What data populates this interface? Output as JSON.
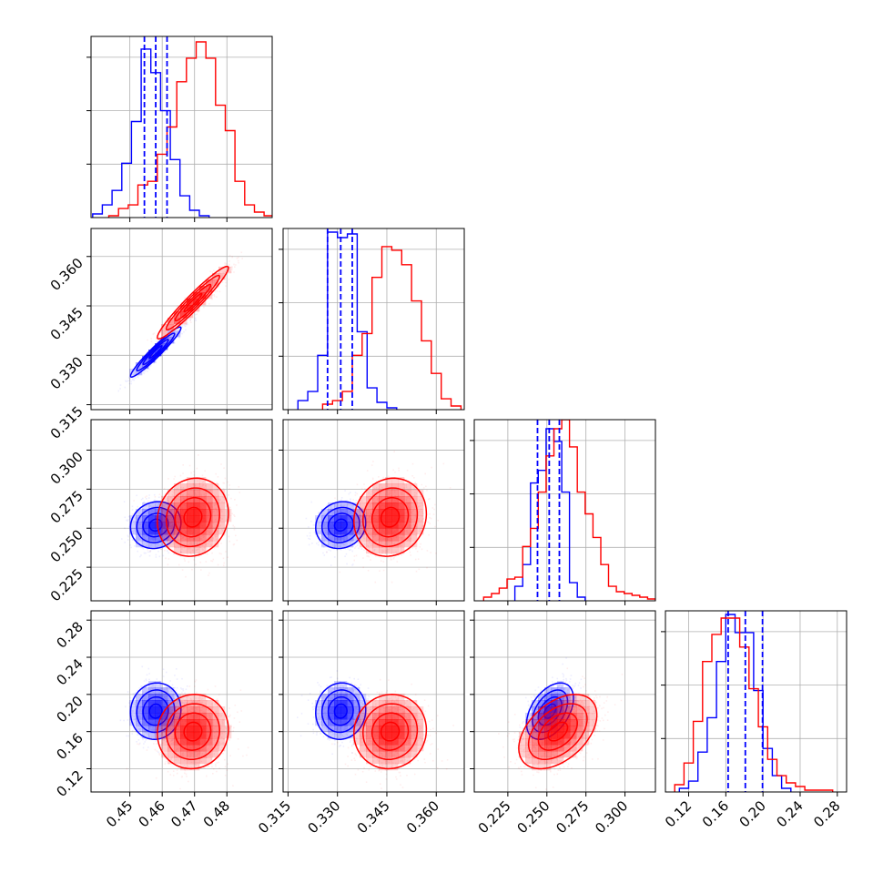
{
  "chart_data": {
    "type": "corner",
    "title": "",
    "parameters": [
      {
        "range": [
          0.438,
          0.494
        ],
        "ticks": [
          0.45,
          0.46,
          0.47,
          0.48
        ],
        "tick_labels": [
          "0.45",
          "0.46",
          "0.47",
          "0.48"
        ]
      },
      {
        "range": [
          0.3135,
          0.3685
        ],
        "ticks": [
          0.315,
          0.33,
          0.345,
          0.36
        ],
        "tick_labels": [
          "0.315",
          "0.330",
          "0.345",
          "0.360"
        ]
      },
      {
        "range": [
          0.2035,
          0.3195
        ],
        "ticks": [
          0.225,
          0.25,
          0.275,
          0.3
        ],
        "tick_labels": [
          "0.225",
          "0.250",
          "0.275",
          "0.300"
        ]
      },
      {
        "range": [
          0.095,
          0.29
        ],
        "ticks": [
          0.12,
          0.16,
          0.2,
          0.24,
          0.28
        ],
        "tick_labels": [
          "0.12",
          "0.16",
          "0.20",
          "0.24",
          "0.28"
        ]
      }
    ],
    "series": [
      {
        "color": "#0000ff",
        "means": [
          0.458,
          0.331,
          0.252,
          0.182
        ],
        "sigmas": [
          0.0039,
          0.0038,
          0.0075,
          0.0152
        ],
        "correlations": {
          "1-0": 0.96,
          "2-0": 0.1,
          "2-1": 0.1,
          "3-0": 0.05,
          "3-1": 0.05,
          "3-2": 0.45
        },
        "quantiles": [
          [
            0.4545,
            0.458,
            0.4615
          ],
          [
            0.327,
            0.331,
            0.3345
          ],
          [
            0.244,
            0.2515,
            0.258
          ],
          [
            0.1625,
            0.181,
            0.1995
          ]
        ],
        "histograms": [
          {
            "bin_edges": [
              0.4385,
              0.4415,
              0.4445,
              0.4475,
              0.4505,
              0.4535,
              0.4565,
              0.4595,
              0.4625,
              0.4655,
              0.4685,
              0.4715,
              0.4745
            ],
            "counts": [
              0.02,
              0.07,
              0.15,
              0.3,
              0.53,
              0.93,
              0.8,
              0.59,
              0.32,
              0.12,
              0.04,
              0.01
            ]
          },
          {
            "bin_edges": [
              0.318,
              0.321,
              0.324,
              0.327,
              0.33,
              0.333,
              0.336,
              0.339,
              0.342,
              0.345,
              0.348
            ],
            "counts": [
              0.05,
              0.1,
              0.3,
              0.98,
              0.95,
              0.97,
              0.43,
              0.12,
              0.04,
              0.01
            ]
          },
          {
            "bin_edges": [
              0.2295,
              0.2345,
              0.2395,
              0.2445,
              0.2495,
              0.2545,
              0.2595,
              0.2645,
              0.2695,
              0.2745
            ],
            "counts": [
              0.08,
              0.2,
              0.65,
              0.72,
              0.95,
              0.88,
              0.6,
              0.1,
              0.02
            ]
          },
          {
            "bin_edges": [
              0.11,
              0.12,
              0.13,
              0.14,
              0.15,
              0.16,
              0.17,
              0.18,
              0.19,
              0.2,
              0.21,
              0.22,
              0.23
            ],
            "counts": [
              0.02,
              0.06,
              0.22,
              0.41,
              0.72,
              0.98,
              0.88,
              0.88,
              0.56,
              0.24,
              0.09,
              0.02
            ]
          }
        ]
      },
      {
        "color": "#ff0000",
        "means": [
          0.4695,
          0.346,
          0.257,
          0.16
        ],
        "sigmas": [
          0.0055,
          0.0055,
          0.0125,
          0.02
        ],
        "correlations": {
          "1-0": 0.96,
          "2-0": 0.1,
          "2-1": 0.1,
          "3-0": 0.05,
          "3-1": 0.05,
          "3-2": 0.45
        },
        "histograms": [
          {
            "bin_edges": [
              0.4435,
              0.4465,
              0.4495,
              0.4525,
              0.4555,
              0.4585,
              0.4615,
              0.4645,
              0.4675,
              0.4705,
              0.4735,
              0.4765,
              0.4795,
              0.4825,
              0.4855,
              0.4885,
              0.4915,
              0.4945
            ],
            "counts": [
              0.01,
              0.05,
              0.07,
              0.18,
              0.2,
              0.35,
              0.5,
              0.75,
              0.88,
              0.97,
              0.88,
              0.62,
              0.48,
              0.2,
              0.07,
              0.03,
              0.01
            ]
          },
          {
            "bin_edges": [
              0.3255,
              0.3285,
              0.3315,
              0.3345,
              0.3375,
              0.3405,
              0.3435,
              0.3465,
              0.3495,
              0.3525,
              0.3555,
              0.3585,
              0.3615,
              0.3645,
              0.3675
            ],
            "counts": [
              0.03,
              0.05,
              0.1,
              0.3,
              0.42,
              0.73,
              0.9,
              0.88,
              0.8,
              0.6,
              0.38,
              0.2,
              0.06,
              0.02
            ]
          },
          {
            "bin_edges": [
              0.2095,
              0.2145,
              0.2195,
              0.2245,
              0.2295,
              0.2345,
              0.2395,
              0.2445,
              0.2495,
              0.2545,
              0.2595,
              0.2645,
              0.2695,
              0.2745,
              0.2795,
              0.2845,
              0.2895,
              0.2945,
              0.2995,
              0.3045,
              0.3095,
              0.3145,
              0.3195
            ],
            "counts": [
              0.02,
              0.04,
              0.07,
              0.12,
              0.13,
              0.3,
              0.4,
              0.6,
              0.8,
              0.95,
              1.0,
              0.85,
              0.6,
              0.48,
              0.35,
              0.2,
              0.08,
              0.05,
              0.04,
              0.03,
              0.02,
              0.01
            ]
          },
          {
            "bin_edges": [
              0.105,
              0.115,
              0.125,
              0.135,
              0.145,
              0.155,
              0.165,
              0.175,
              0.185,
              0.195,
              0.205,
              0.215,
              0.225,
              0.235,
              0.245,
              0.255,
              0.265,
              0.275
            ],
            "counts": [
              0.04,
              0.16,
              0.39,
              0.72,
              0.87,
              0.96,
              0.96,
              0.8,
              0.57,
              0.36,
              0.18,
              0.09,
              0.05,
              0.03,
              0.01,
              0.01,
              0.01
            ]
          }
        ]
      }
    ],
    "contour_levels_sigma": [
      0.5,
      1.0,
      1.5,
      2.0
    ],
    "grid": true
  }
}
